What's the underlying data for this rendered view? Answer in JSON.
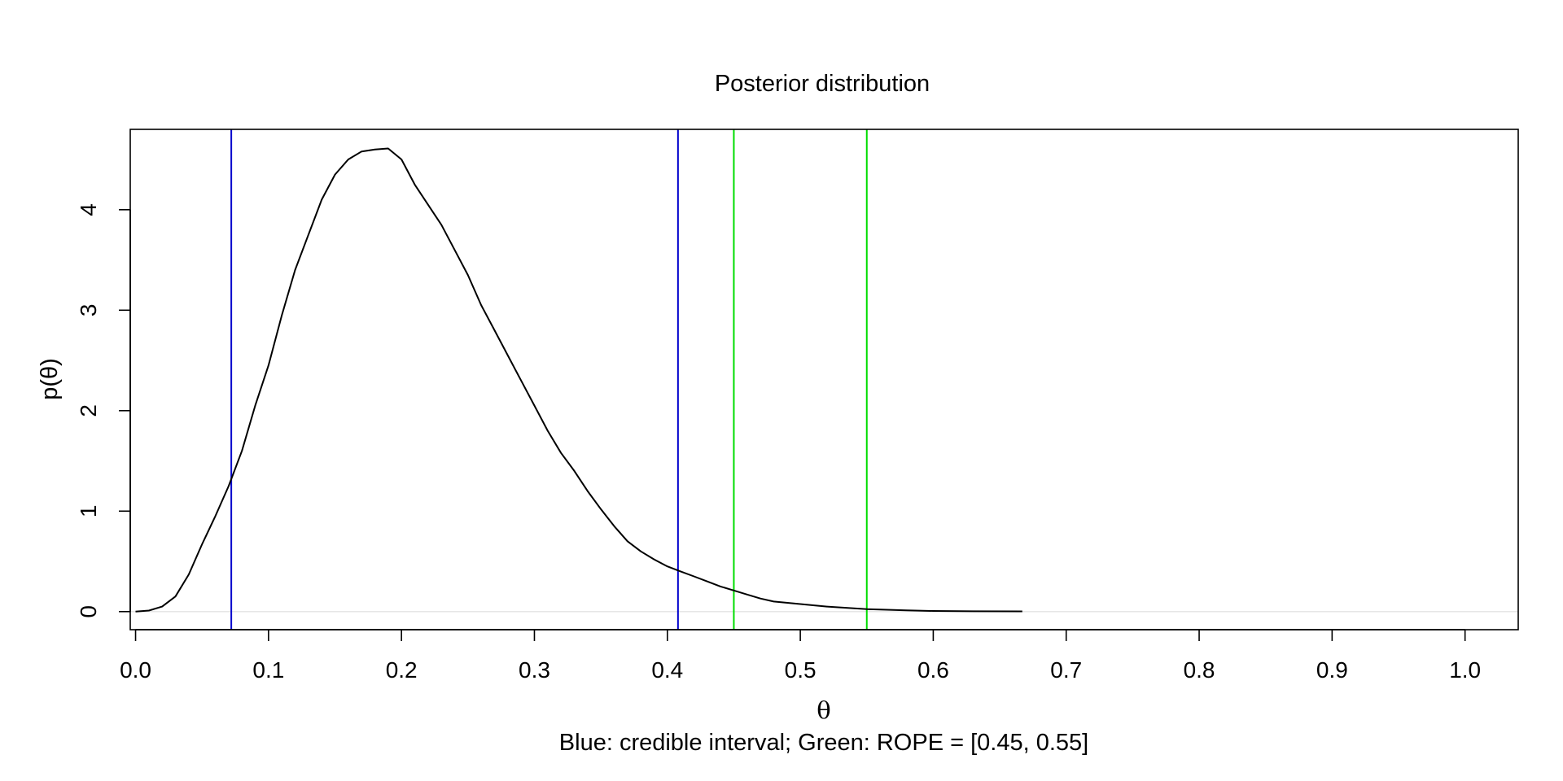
{
  "chart_data": {
    "type": "line",
    "title": "Posterior distribution",
    "xlabel": "θ",
    "ylabel": "p(θ)",
    "subtitle": "Blue: credible interval; Green: ROPE = [0.45, 0.55]",
    "xlim": [
      -0.004,
      1.04
    ],
    "ylim": [
      -0.18,
      4.8
    ],
    "x_ticks": [
      "0.0",
      "0.1",
      "0.2",
      "0.3",
      "0.4",
      "0.5",
      "0.6",
      "0.7",
      "0.8",
      "0.9",
      "1.0"
    ],
    "x_tick_values": [
      0.0,
      0.1,
      0.2,
      0.3,
      0.4,
      0.5,
      0.6,
      0.7,
      0.8,
      0.9,
      1.0
    ],
    "y_ticks": [
      "0",
      "1",
      "2",
      "3",
      "4"
    ],
    "y_tick_values": [
      0,
      1,
      2,
      3,
      4
    ],
    "grid": false,
    "series": [
      {
        "color": "#000000",
        "x": [
          0.0,
          0.01,
          0.02,
          0.03,
          0.04,
          0.05,
          0.06,
          0.07,
          0.08,
          0.09,
          0.1,
          0.11,
          0.12,
          0.13,
          0.14,
          0.15,
          0.16,
          0.17,
          0.18,
          0.19,
          0.2,
          0.21,
          0.22,
          0.23,
          0.24,
          0.25,
          0.26,
          0.27,
          0.28,
          0.29,
          0.3,
          0.31,
          0.32,
          0.33,
          0.34,
          0.35,
          0.36,
          0.37,
          0.38,
          0.39,
          0.4,
          0.41,
          0.42,
          0.43,
          0.44,
          0.45,
          0.46,
          0.47,
          0.48,
          0.5,
          0.52,
          0.55,
          0.58,
          0.6,
          0.63,
          0.667
        ],
        "y": [
          0.0,
          0.01,
          0.05,
          0.15,
          0.37,
          0.67,
          0.95,
          1.25,
          1.6,
          2.05,
          2.45,
          2.95,
          3.4,
          3.75,
          4.1,
          4.35,
          4.5,
          4.58,
          4.6,
          4.61,
          4.5,
          4.25,
          4.05,
          3.85,
          3.6,
          3.35,
          3.05,
          2.8,
          2.55,
          2.3,
          2.05,
          1.8,
          1.58,
          1.4,
          1.2,
          1.02,
          0.85,
          0.7,
          0.6,
          0.52,
          0.45,
          0.4,
          0.35,
          0.3,
          0.25,
          0.21,
          0.17,
          0.13,
          0.1,
          0.075,
          0.05,
          0.025,
          0.012,
          0.006,
          0.003,
          0.002
        ]
      }
    ],
    "vlines": [
      {
        "x": 0.072,
        "color": "#0000cd"
      },
      {
        "x": 0.408,
        "color": "#0000cd"
      },
      {
        "x": 0.45,
        "color": "#00dd00"
      },
      {
        "x": 0.55,
        "color": "#00dd00"
      }
    ],
    "hline": {
      "y": 0,
      "color": "#e6e6e6"
    }
  }
}
